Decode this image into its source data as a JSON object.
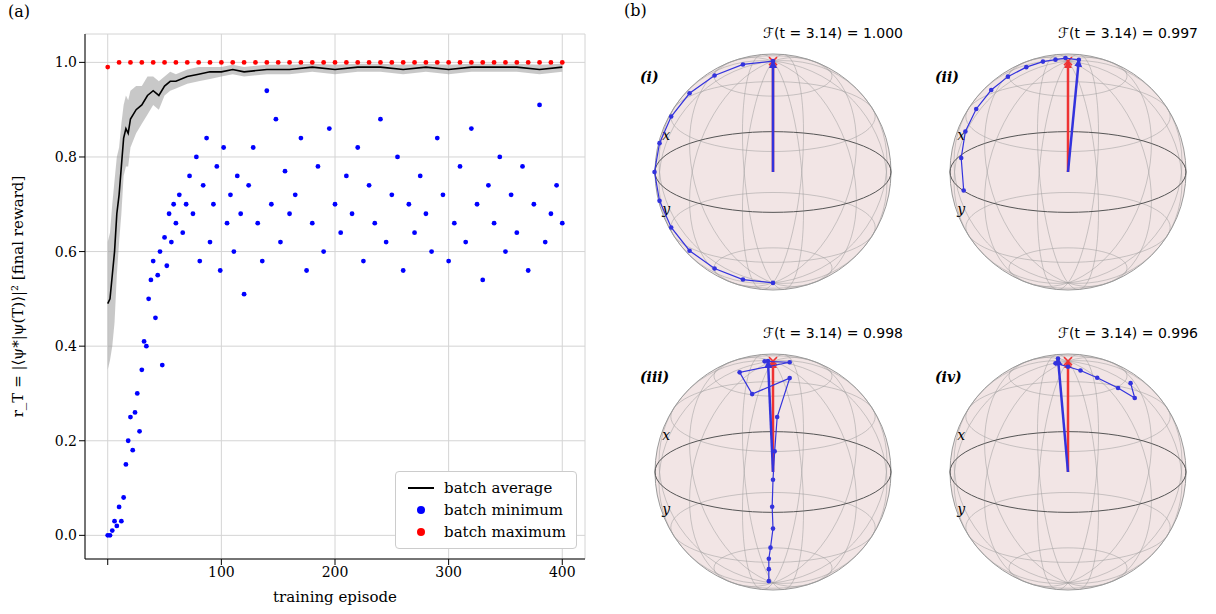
{
  "chart_data": {
    "type": "line",
    "panel_label": "(a)",
    "x_label": "training episode",
    "y_label": "r_T = |⟨ψ*|ψ(T)⟩|² [final reward]",
    "xlim": [
      -20,
      420
    ],
    "ylim": [
      -0.05,
      1.06
    ],
    "xticks": [
      0,
      100,
      200,
      300,
      400
    ],
    "yticks": [
      {
        "value": 0,
        "label": "0.0"
      },
      {
        "value": 0.2,
        "label": "0.2"
      },
      {
        "value": 0.4,
        "label": "0.4"
      },
      {
        "value": 0.6,
        "label": "0.6"
      },
      {
        "value": 0.8,
        "label": "0.8"
      },
      {
        "value": 1,
        "label": "1.0"
      }
    ],
    "grid": true,
    "legend": "lower right",
    "series": [
      {
        "name": "batch average",
        "type": "line",
        "color": "#000000",
        "x": [
          0,
          2,
          4,
          6,
          8,
          10,
          12,
          14,
          16,
          18,
          20,
          25,
          30,
          35,
          40,
          45,
          50,
          55,
          60,
          70,
          80,
          90,
          100,
          110,
          120,
          140,
          160,
          180,
          200,
          220,
          240,
          260,
          280,
          300,
          320,
          340,
          360,
          380,
          400
        ],
        "values": [
          0.49,
          0.5,
          0.55,
          0.6,
          0.68,
          0.72,
          0.78,
          0.84,
          0.86,
          0.85,
          0.88,
          0.9,
          0.91,
          0.93,
          0.94,
          0.93,
          0.95,
          0.96,
          0.96,
          0.97,
          0.975,
          0.98,
          0.98,
          0.985,
          0.98,
          0.985,
          0.985,
          0.99,
          0.985,
          0.99,
          0.99,
          0.985,
          0.99,
          0.985,
          0.99,
          0.99,
          0.99,
          0.985,
          0.99
        ],
        "lower": [
          0.35,
          0.37,
          0.4,
          0.45,
          0.55,
          0.62,
          0.68,
          0.76,
          0.78,
          0.78,
          0.82,
          0.85,
          0.87,
          0.89,
          0.91,
          0.9,
          0.93,
          0.94,
          0.945,
          0.955,
          0.96,
          0.965,
          0.97,
          0.975,
          0.97,
          0.975,
          0.975,
          0.98,
          0.975,
          0.98,
          0.98,
          0.975,
          0.98,
          0.975,
          0.98,
          0.98,
          0.98,
          0.975,
          0.98
        ],
        "upper": [
          0.62,
          0.64,
          0.7,
          0.75,
          0.8,
          0.82,
          0.87,
          0.91,
          0.93,
          0.92,
          0.94,
          0.95,
          0.95,
          0.97,
          0.97,
          0.96,
          0.97,
          0.98,
          0.975,
          0.985,
          0.99,
          0.99,
          0.99,
          0.995,
          0.99,
          0.995,
          0.995,
          0.997,
          0.995,
          0.997,
          0.997,
          0.995,
          0.997,
          0.995,
          0.997,
          0.997,
          0.997,
          0.995,
          0.997
        ]
      },
      {
        "name": "batch minimum",
        "type": "scatter",
        "color": "#0000ff",
        "x": [
          0,
          2,
          4,
          6,
          8,
          10,
          12,
          14,
          16,
          18,
          20,
          22,
          24,
          26,
          28,
          30,
          32,
          34,
          36,
          38,
          40,
          42,
          44,
          46,
          48,
          50,
          52,
          54,
          56,
          58,
          60,
          63,
          66,
          69,
          72,
          75,
          78,
          81,
          84,
          87,
          90,
          93,
          96,
          99,
          102,
          105,
          108,
          111,
          114,
          117,
          120,
          124,
          128,
          132,
          136,
          140,
          144,
          148,
          152,
          156,
          160,
          165,
          170,
          175,
          180,
          185,
          190,
          195,
          200,
          205,
          210,
          215,
          220,
          225,
          230,
          235,
          240,
          245,
          250,
          255,
          260,
          265,
          270,
          275,
          280,
          285,
          290,
          295,
          300,
          305,
          310,
          315,
          320,
          325,
          330,
          335,
          340,
          345,
          350,
          355,
          360,
          365,
          370,
          375,
          380,
          385,
          390,
          395,
          400
        ],
        "values": [
          0.0,
          0.0,
          0.01,
          0.03,
          0.02,
          0.06,
          0.03,
          0.08,
          0.15,
          0.2,
          0.25,
          0.18,
          0.26,
          0.3,
          0.22,
          0.35,
          0.41,
          0.4,
          0.5,
          0.54,
          0.58,
          0.46,
          0.55,
          0.6,
          0.36,
          0.63,
          0.57,
          0.68,
          0.62,
          0.7,
          0.66,
          0.72,
          0.64,
          0.7,
          0.76,
          0.68,
          0.8,
          0.58,
          0.74,
          0.84,
          0.62,
          0.7,
          0.78,
          0.56,
          0.82,
          0.66,
          0.72,
          0.6,
          0.76,
          0.68,
          0.51,
          0.74,
          0.82,
          0.66,
          0.58,
          0.94,
          0.7,
          0.88,
          0.62,
          0.77,
          0.68,
          0.72,
          0.84,
          0.56,
          0.66,
          0.78,
          0.6,
          0.86,
          0.7,
          0.64,
          0.76,
          0.68,
          0.82,
          0.58,
          0.74,
          0.66,
          0.88,
          0.62,
          0.72,
          0.8,
          0.56,
          0.7,
          0.64,
          0.76,
          0.68,
          0.6,
          0.84,
          0.72,
          0.58,
          0.66,
          0.78,
          0.62,
          0.86,
          0.7,
          0.54,
          0.74,
          0.66,
          0.8,
          0.6,
          0.72,
          0.64,
          0.78,
          0.56,
          0.7,
          0.91,
          0.62,
          0.68,
          0.74,
          0.66
        ]
      },
      {
        "name": "batch maximum",
        "type": "scatter",
        "color": "#ff0000",
        "x": [
          0,
          10,
          20,
          30,
          40,
          50,
          60,
          70,
          80,
          90,
          100,
          110,
          120,
          130,
          140,
          150,
          160,
          170,
          180,
          190,
          200,
          210,
          220,
          230,
          240,
          250,
          260,
          270,
          280,
          290,
          300,
          310,
          320,
          330,
          340,
          350,
          360,
          370,
          380,
          390,
          400
        ],
        "values": [
          0.99,
          1,
          1,
          1,
          1,
          1,
          1,
          1,
          1,
          1,
          1,
          1,
          1,
          1,
          1,
          1,
          1,
          1,
          1,
          1,
          1,
          1,
          1,
          1,
          1,
          1,
          1,
          1,
          1,
          1,
          1,
          1,
          1,
          1,
          1,
          1,
          1,
          1,
          1,
          1,
          1
        ]
      }
    ]
  },
  "bloch_spheres": {
    "panel_label": "(b)",
    "axis_labels": [
      "x",
      "y"
    ],
    "target": [
      0,
      0,
      1
    ],
    "spheres": [
      {
        "label": "(i)",
        "fidelity_text": "ℱ(t = 3.14) = 1.000",
        "trajectory": [
          [
            0,
            0,
            -1
          ],
          [
            0.18,
            0.18,
            -0.97
          ],
          [
            0.35,
            0.35,
            -0.87
          ],
          [
            0.5,
            0.5,
            -0.71
          ],
          [
            0.61,
            0.61,
            -0.5
          ],
          [
            0.68,
            0.68,
            -0.26
          ],
          [
            0.71,
            0.71,
            0
          ],
          [
            0.68,
            0.68,
            0.26
          ],
          [
            0.61,
            0.61,
            0.5
          ],
          [
            0.5,
            0.5,
            0.71
          ],
          [
            0.35,
            0.35,
            0.87
          ],
          [
            0.18,
            0.18,
            0.97
          ],
          [
            0,
            0,
            1
          ]
        ]
      },
      {
        "label": "(ii)",
        "fidelity_text": "ℱ(t = 3.14) = 0.997",
        "trajectory": [
          [
            0.3,
            0.95,
            0.0
          ],
          [
            0.4,
            0.88,
            0.25
          ],
          [
            0.45,
            0.78,
            0.45
          ],
          [
            0.45,
            0.65,
            0.62
          ],
          [
            0.42,
            0.5,
            0.76
          ],
          [
            0.36,
            0.36,
            0.86
          ],
          [
            0.28,
            0.22,
            0.93
          ],
          [
            0.2,
            0.1,
            0.97
          ],
          [
            0.12,
            0.03,
            0.99
          ],
          [
            0.08,
            -0.05,
            0.994
          ],
          [
            -0.03,
            -0.1,
            0.994
          ]
        ]
      },
      {
        "label": "(iii)",
        "fidelity_text": "ℱ(t = 3.14) = 0.998",
        "trajectory": [
          [
            -0.45,
            0.5,
            -0.74
          ],
          [
            -0.55,
            0.6,
            -0.58
          ],
          [
            -0.6,
            0.65,
            -0.46
          ],
          [
            -0.65,
            0.68,
            -0.34
          ],
          [
            -0.7,
            0.7,
            -0.15
          ],
          [
            -0.7,
            0.71,
            0.05
          ],
          [
            -0.68,
            0.68,
            0.28
          ],
          [
            -0.62,
            0.6,
            0.5
          ],
          [
            -0.5,
            0.45,
            0.74
          ],
          [
            -0.3,
            0.1,
            0.95
          ],
          [
            -0.2,
            0.45,
            0.87
          ],
          [
            0.1,
            0.3,
            0.95
          ],
          [
            -0.1,
            -0.1,
            0.99
          ],
          [
            0.05,
            0.05,
            0.998
          ],
          [
            0.04,
            0.02,
            0.996
          ]
        ]
      },
      {
        "label": "(iv)",
        "fidelity_text": "ℱ(t = 3.14) = 0.996",
        "trajectory": [
          [
            -0.45,
            -0.3,
            0.84
          ],
          [
            -0.6,
            -0.2,
            0.77
          ],
          [
            -0.5,
            -0.1,
            0.86
          ],
          [
            -0.35,
            0.0,
            0.94
          ],
          [
            -0.2,
            0.05,
            0.98
          ],
          [
            -0.08,
            0.08,
            0.99
          ],
          [
            0.05,
            0.1,
            0.993
          ],
          [
            0.12,
            0.0,
            0.993
          ]
        ]
      }
    ]
  }
}
